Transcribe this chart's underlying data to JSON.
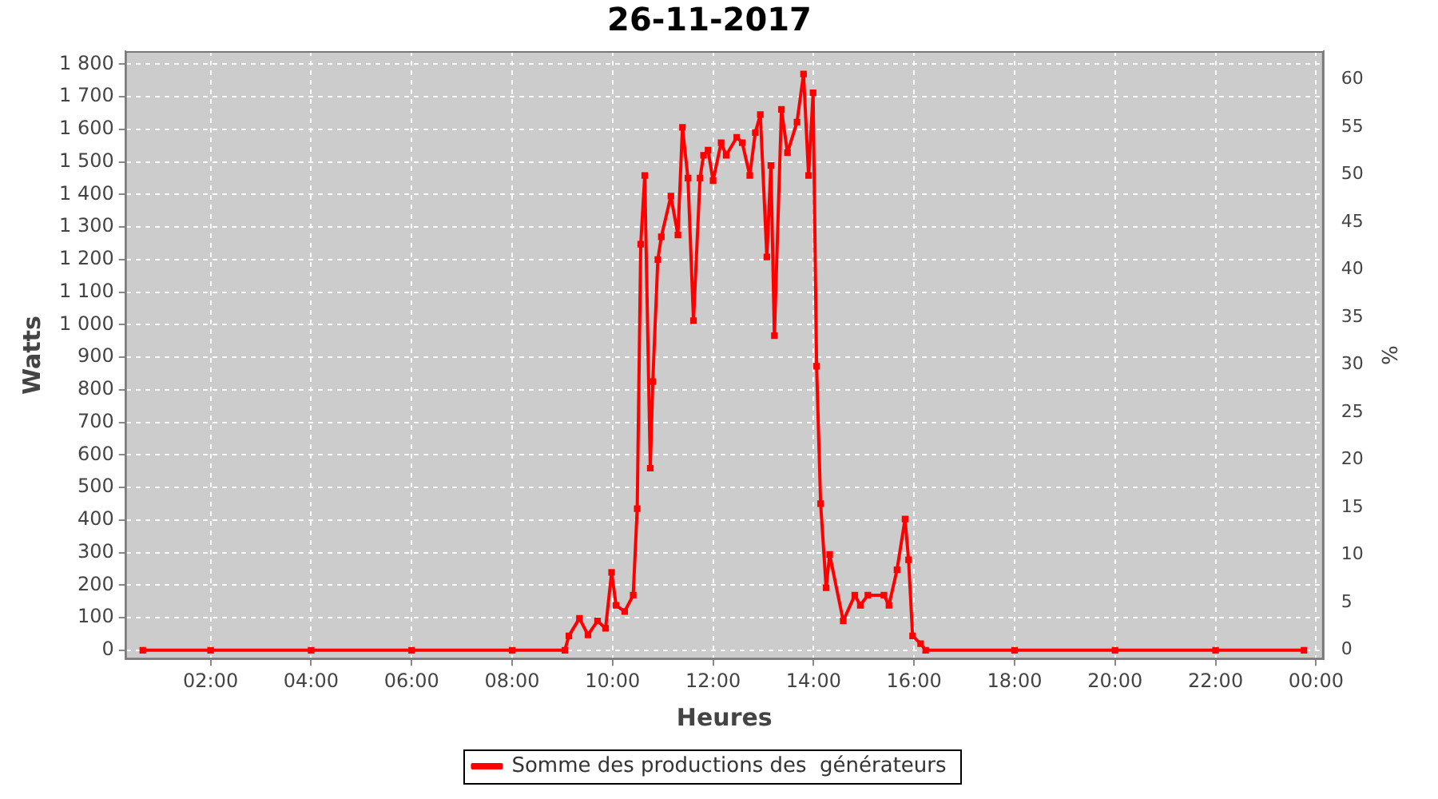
{
  "chart_data": {
    "type": "line",
    "title": "26-11-2017",
    "xlabel": "Heures",
    "ylabel": "Watts",
    "y2label": "%",
    "xlim": [
      0.3,
      24.15
    ],
    "xticks": [
      {
        "value": 2,
        "label": "02:00"
      },
      {
        "value": 4,
        "label": "04:00"
      },
      {
        "value": 6,
        "label": "06:00"
      },
      {
        "value": 8,
        "label": "08:00"
      },
      {
        "value": 10,
        "label": "10:00"
      },
      {
        "value": 12,
        "label": "12:00"
      },
      {
        "value": 14,
        "label": "14:00"
      },
      {
        "value": 16,
        "label": "16:00"
      },
      {
        "value": 18,
        "label": "18:00"
      },
      {
        "value": 20,
        "label": "20:00"
      },
      {
        "value": 22,
        "label": "22:00"
      },
      {
        "value": 24,
        "label": "00:00"
      }
    ],
    "ylim": [
      -28,
      1840
    ],
    "yticks": [
      0,
      100,
      200,
      300,
      400,
      500,
      600,
      700,
      800,
      900,
      {
        "value": 1000,
        "label": "1 000"
      },
      {
        "value": 1100,
        "label": "1 100"
      },
      {
        "value": 1200,
        "label": "1 200"
      },
      {
        "value": 1300,
        "label": "1 300"
      },
      {
        "value": 1400,
        "label": "1 400"
      },
      {
        "value": 1500,
        "label": "1 500"
      },
      {
        "value": 1600,
        "label": "1 600"
      },
      {
        "value": 1700,
        "label": "1 700"
      },
      {
        "value": 1800,
        "label": "1 800"
      }
    ],
    "y2lim": [
      -1,
      63
    ],
    "y2ticks": [
      0,
      5,
      10,
      15,
      20,
      25,
      30,
      35,
      40,
      45,
      50,
      55,
      60
    ],
    "grid": true,
    "legend": "bottom",
    "marker": "square",
    "line_style": "solid",
    "series": [
      {
        "name": "Somme des productions des  générateurs",
        "color": "#ff0000",
        "x": [
          0.65,
          2,
          4,
          6,
          8,
          9.05,
          9.13,
          9.34,
          9.51,
          9.7,
          9.86,
          9.98,
          10.07,
          10.24,
          10.41,
          10.49,
          10.56,
          10.64,
          10.75,
          10.8,
          10.9,
          10.97,
          11.16,
          11.3,
          11.39,
          11.5,
          11.61,
          11.74,
          11.81,
          11.9,
          12,
          12.16,
          12.26,
          12.47,
          12.58,
          12.73,
          12.84,
          12.94,
          13.07,
          13.15,
          13.22,
          13.36,
          13.48,
          13.67,
          13.8,
          13.9,
          13.99,
          14.06,
          14.14,
          14.25,
          14.32,
          14.59,
          14.82,
          14.93,
          15.08,
          15.4,
          15.5,
          15.66,
          15.82,
          15.89,
          15.97,
          16.13,
          16.23,
          18,
          20,
          22,
          23.76
        ],
        "values": [
          0,
          0,
          0,
          0,
          0,
          0,
          44,
          98,
          47,
          90,
          67,
          239,
          138,
          119,
          169,
          435,
          1247,
          1458,
          559,
          825,
          1200,
          1270,
          1395,
          1275,
          1606,
          1450,
          1012,
          1450,
          1520,
          1536,
          1442,
          1559,
          1520,
          1575,
          1559,
          1458,
          1590,
          1645,
          1208,
          1489,
          966,
          1661,
          1528,
          1622,
          1770,
          1458,
          1712,
          872,
          450,
          192,
          294,
          90,
          169,
          138,
          169,
          169,
          138,
          247,
          403,
          278,
          44,
          20,
          0,
          0,
          0,
          0,
          0
        ]
      }
    ]
  }
}
